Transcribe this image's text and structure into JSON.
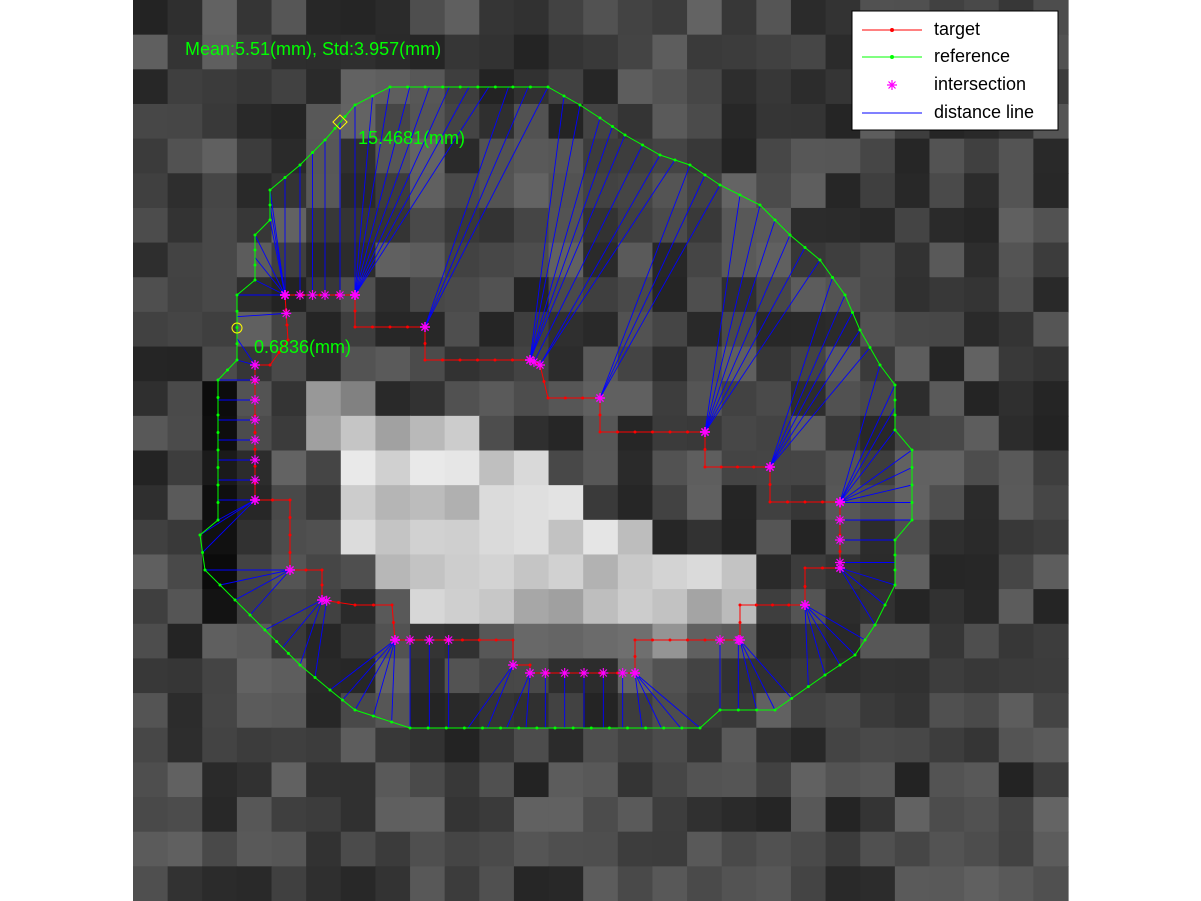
{
  "annotations": {
    "summary": "Mean:5.51(mm), Std:3.957(mm)",
    "max": "15.4681(mm)",
    "min": "0.6836(mm)"
  },
  "legend": [
    "target",
    "reference",
    "intersection",
    "distance line"
  ]
}
